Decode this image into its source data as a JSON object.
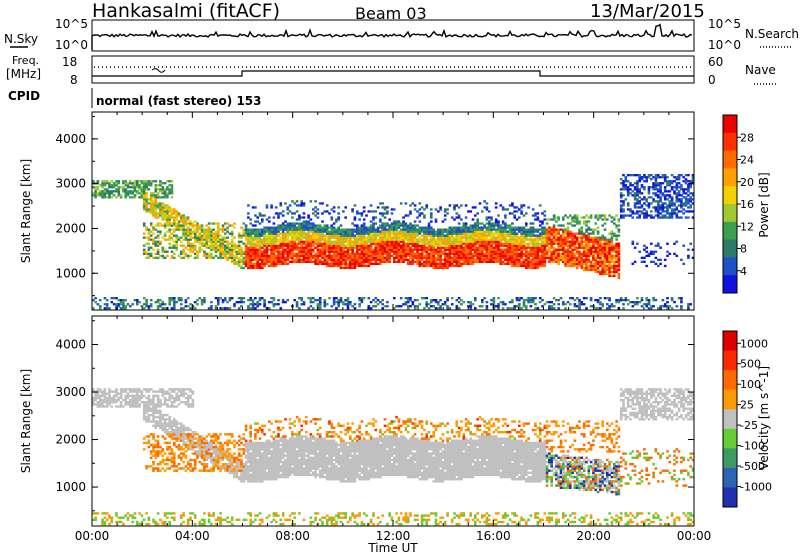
{
  "header": {
    "station": "Hankasalmi (fitACF)",
    "beam": "Beam 03",
    "date": "13/Mar/2015"
  },
  "top_panels": {
    "nsky_label": "N.Sky",
    "nsky_ticks": [
      "10^5",
      "10^0"
    ],
    "nsearch_label": "N.Search",
    "nsearch_ticks": [
      "10^5",
      "10^0"
    ],
    "freq_label": [
      "Freq.",
      "[MHz]"
    ],
    "freq_ticks": [
      "18",
      "8"
    ],
    "nave_label": "Nave",
    "nave_ticks": [
      "60",
      "0"
    ],
    "cpid_label": "CPID",
    "cpid_text": "normal (fast stereo) 153"
  },
  "chart_data": [
    {
      "type": "heatmap",
      "title": "",
      "xlabel": "Time UT",
      "ylabel": "Slant Range [km]",
      "xlim": [
        "00:00",
        "24:00"
      ],
      "ylim": [
        180,
        4600
      ],
      "x_ticks": [
        "00:00",
        "04:00",
        "08:00",
        "12:00",
        "16:00",
        "20:00",
        "00:00"
      ],
      "y_ticks": [
        1000,
        2000,
        3000,
        4000
      ],
      "colorbar": {
        "label": "Power [dB]",
        "ticks": [
          "4",
          "8",
          "12",
          "16",
          "20",
          "24",
          "28"
        ],
        "colors": [
          "#1212e0",
          "#1e50c8",
          "#2e7a6a",
          "#3aa050",
          "#a0c832",
          "#f0d200",
          "#ffa000",
          "#ff6a00",
          "#ff3000",
          "#ee0000"
        ]
      },
      "bands_description_hours": [
        {
          "start": 0,
          "end": 3,
          "range_km": [
            2700,
            3000
          ],
          "level": 4
        },
        {
          "start": 2,
          "end": 6,
          "range_km": [
            1300,
            2500
          ],
          "level": 6
        },
        {
          "start": 6,
          "end": 18,
          "range_km": [
            1100,
            2100
          ],
          "level": 9
        },
        {
          "start": 18,
          "end": 21,
          "range_km": [
            900,
            2000
          ],
          "level": 8
        },
        {
          "start": 21,
          "end": 24,
          "range_km": [
            2300,
            3200
          ],
          "level": 2
        }
      ]
    },
    {
      "type": "heatmap",
      "title": "",
      "xlabel": "Time UT",
      "ylabel": "Slant Range [km]",
      "xlim": [
        "00:00",
        "24:00"
      ],
      "ylim": [
        180,
        4600
      ],
      "x_ticks": [
        "00:00",
        "04:00",
        "08:00",
        "12:00",
        "16:00",
        "20:00",
        "00:00"
      ],
      "y_ticks": [
        1000,
        2000,
        3000,
        4000
      ],
      "colorbar": {
        "label": "Velocity [m s^-1]",
        "ticks": [
          "1000",
          "500",
          "100",
          "25",
          "-25",
          "-100",
          "-500",
          "-1000"
        ],
        "colors": [
          "#2030b0",
          "#2e64b4",
          "#3c9a64",
          "#66cc33",
          "#c0c0c0",
          "#ff9a00",
          "#ff6a00",
          "#ff2a00",
          "#dd0000"
        ]
      },
      "bands_description_hours": [
        {
          "start": 0,
          "end": 4,
          "range_km": [
            2700,
            3000
          ],
          "class": "ground"
        },
        {
          "start": 6,
          "end": 18,
          "range_km": [
            1100,
            2000
          ],
          "class": "ground"
        },
        {
          "start": 10,
          "end": 17,
          "range_km": [
            1800,
            2300
          ],
          "class": "negative"
        },
        {
          "start": 19,
          "end": 21,
          "range_km": [
            900,
            1700
          ],
          "class": "mixed"
        },
        {
          "start": 21,
          "end": 24,
          "range_km": [
            2500,
            3000
          ],
          "class": "ground"
        }
      ]
    }
  ]
}
